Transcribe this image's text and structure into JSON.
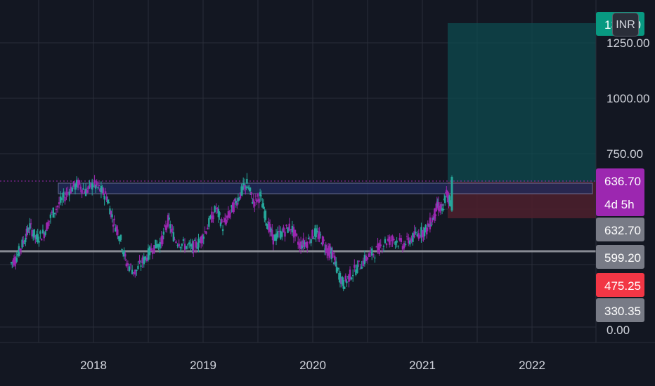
{
  "chart_data": {
    "type": "candlestick",
    "title": "",
    "currency": "INR",
    "x_axis_labels": [
      "2018",
      "2019",
      "2020",
      "2021",
      "2022"
    ],
    "y_axis_labels": [
      "1250.00",
      "1000.00",
      "750.00",
      "0.00"
    ],
    "ylim": [
      -20,
      1400
    ],
    "grid": true,
    "price_badges": [
      {
        "name": "target",
        "label": "1349.0",
        "color": "#089981"
      },
      {
        "name": "last-price",
        "label": "636.70",
        "sub_label": "4d 5h",
        "color": "#9c27b0"
      },
      {
        "name": "entry",
        "label": "632.70",
        "color": "#787b86"
      },
      {
        "name": "support",
        "label": "599.20",
        "color": "#787b86"
      },
      {
        "name": "stop",
        "label": "475.25",
        "color": "#f23645"
      },
      {
        "name": "low-mark",
        "label": "330.35",
        "color": "#787b86"
      }
    ],
    "resistance_zone": {
      "low": 624,
      "high": 660
    },
    "support_level": 490,
    "position": {
      "entry": 632.7,
      "target": 1349.0,
      "stop": 475.25
    },
    "colors": {
      "up": "#26a69a",
      "down": "#9c27b0",
      "profit_zone": "#0e4b4f",
      "loss_zone": "#4a1f2c",
      "last_price_line": "#9c27b0"
    },
    "candles": [
      [
        2017.25,
        400,
        420
      ],
      [
        2017.3,
        420,
        470
      ],
      [
        2017.36,
        470,
        520
      ],
      [
        2017.42,
        520,
        480
      ],
      [
        2017.48,
        480,
        500
      ],
      [
        2017.55,
        500,
        560
      ],
      [
        2017.62,
        560,
        600
      ],
      [
        2017.7,
        600,
        640
      ],
      [
        2017.78,
        640,
        660
      ],
      [
        2017.86,
        660,
        635
      ],
      [
        2017.93,
        635,
        660
      ],
      [
        2018.0,
        660,
        640
      ],
      [
        2018.06,
        640,
        620
      ],
      [
        2018.12,
        620,
        540
      ],
      [
        2018.18,
        540,
        490
      ],
      [
        2018.24,
        490,
        400
      ],
      [
        2018.3,
        400,
        370
      ],
      [
        2018.38,
        370,
        410
      ],
      [
        2018.46,
        410,
        450
      ],
      [
        2018.54,
        450,
        470
      ],
      [
        2018.62,
        470,
        540
      ],
      [
        2018.68,
        540,
        480
      ],
      [
        2018.74,
        480,
        460
      ],
      [
        2018.82,
        460,
        450
      ],
      [
        2018.9,
        450,
        470
      ],
      [
        2018.97,
        470,
        520
      ],
      [
        2019.04,
        520,
        580
      ],
      [
        2019.12,
        580,
        520
      ],
      [
        2019.18,
        520,
        560
      ],
      [
        2019.24,
        560,
        600
      ],
      [
        2019.3,
        600,
        640
      ],
      [
        2019.36,
        640,
        660
      ],
      [
        2019.4,
        660,
        600
      ],
      [
        2019.46,
        600,
        620
      ],
      [
        2019.52,
        620,
        540
      ],
      [
        2019.58,
        540,
        480
      ],
      [
        2019.64,
        480,
        500
      ],
      [
        2019.72,
        500,
        520
      ],
      [
        2019.8,
        520,
        460
      ],
      [
        2019.88,
        460,
        470
      ],
      [
        2019.95,
        470,
        500
      ],
      [
        2020.02,
        500,
        480
      ],
      [
        2020.08,
        480,
        440
      ],
      [
        2020.14,
        440,
        430
      ],
      [
        2020.18,
        430,
        380
      ],
      [
        2020.22,
        380,
        330
      ],
      [
        2020.28,
        330,
        360
      ],
      [
        2020.34,
        360,
        390
      ],
      [
        2020.42,
        390,
        420
      ],
      [
        2020.5,
        420,
        440
      ],
      [
        2020.58,
        440,
        470
      ],
      [
        2020.66,
        470,
        480
      ],
      [
        2020.74,
        480,
        460
      ],
      [
        2020.82,
        460,
        480
      ],
      [
        2020.9,
        480,
        500
      ],
      [
        2020.98,
        500,
        510
      ],
      [
        2021.04,
        510,
        550
      ],
      [
        2021.1,
        550,
        590
      ],
      [
        2021.14,
        590,
        570
      ],
      [
        2021.18,
        570,
        630
      ],
      [
        2021.22,
        630,
        600
      ],
      [
        2021.26,
        600,
        637
      ]
    ]
  }
}
